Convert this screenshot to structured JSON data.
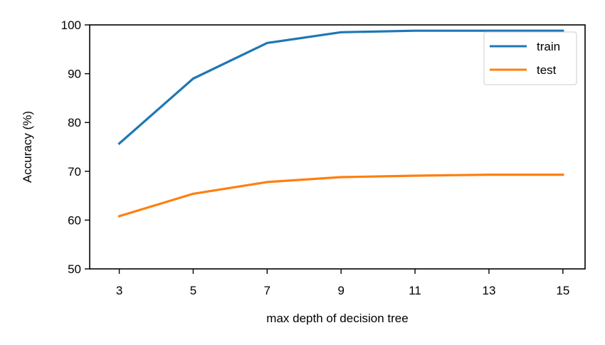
{
  "chart_data": {
    "type": "line",
    "title": "",
    "xlabel": "max depth of decision tree",
    "ylabel": "Accuracy (%)",
    "x": [
      3,
      5,
      7,
      9,
      11,
      13,
      15
    ],
    "xticks": [
      3,
      5,
      7,
      9,
      11,
      13,
      15
    ],
    "yticks": [
      50,
      60,
      70,
      80,
      90,
      100
    ],
    "xlim": [
      2.2,
      15.6
    ],
    "ylim": [
      50,
      100
    ],
    "grid": false,
    "legend": "top-right",
    "series": [
      {
        "name": "train",
        "color": "#1f77b4",
        "values": [
          75.7,
          89.0,
          96.3,
          98.5,
          98.8,
          98.8,
          98.8
        ]
      },
      {
        "name": "test",
        "color": "#ff7f0e",
        "values": [
          60.8,
          65.4,
          67.8,
          68.8,
          69.1,
          69.3,
          69.3
        ]
      }
    ]
  }
}
